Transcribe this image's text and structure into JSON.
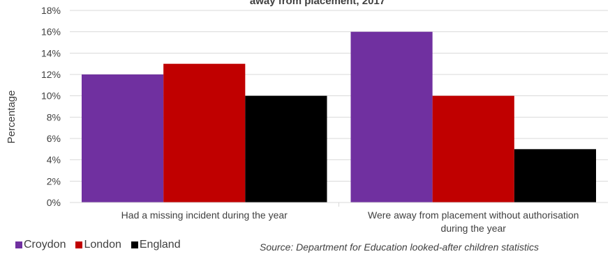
{
  "chart_data": {
    "type": "bar",
    "title": "away from placement, 2017",
    "ylabel": "Percentage",
    "xlabel": "",
    "ylim": [
      0,
      18
    ],
    "yticks": [
      "0%",
      "2%",
      "4%",
      "6%",
      "8%",
      "10%",
      "12%",
      "14%",
      "16%",
      "18%"
    ],
    "categories": [
      [
        "Had a missing incident during the year"
      ],
      [
        "Were away from placement without authorisation",
        "during the year"
      ]
    ],
    "series": [
      {
        "name": "Croydon",
        "color": "#7030A0",
        "values": [
          12,
          16
        ]
      },
      {
        "name": "London",
        "color": "#C00000",
        "values": [
          13,
          10
        ]
      },
      {
        "name": "England",
        "color": "#000000",
        "values": [
          10,
          5
        ]
      }
    ],
    "grid": true,
    "legend": "bottom-left",
    "source": "Source: Department for Education looked-after children statistics"
  }
}
